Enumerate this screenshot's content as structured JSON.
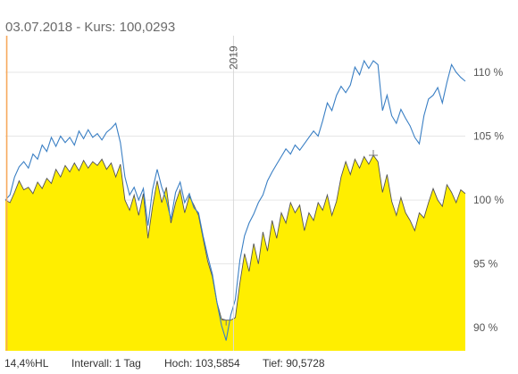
{
  "header": {
    "date": "03.07.2018",
    "separator": "-",
    "kurs_label": "Kurs:",
    "kurs_value": "100,0293"
  },
  "footer": {
    "range": "14,4%HL",
    "interval": "Intervall: 1 Tag",
    "high": "Hoch: 103,5854",
    "low": "Tief: 90,5728"
  },
  "colors": {
    "area_fill": "#ffee00",
    "area_line": "#555555",
    "benchmark_line": "#3a7fc4",
    "cursor": "#f7a95c",
    "grid": "#e6e6e6"
  },
  "chart_data": {
    "type": "area",
    "year_marker": "2019",
    "y_ticks": [
      {
        "value": 90,
        "label": "90 %"
      },
      {
        "value": 95,
        "label": "95 %"
      },
      {
        "value": 100,
        "label": "100 %"
      },
      {
        "value": 105,
        "label": "105 %"
      },
      {
        "value": 110,
        "label": "110 %"
      }
    ],
    "ylim": [
      88.2,
      113
    ],
    "x_range": [
      0,
      100
    ],
    "year_marker_x": 49.6,
    "cursor_x": 0.3,
    "series": [
      {
        "style": "filled-area",
        "points": [
          [
            0,
            100.0
          ],
          [
            1,
            99.8
          ],
          [
            2,
            100.6
          ],
          [
            3,
            101.5
          ],
          [
            4,
            100.8
          ],
          [
            5,
            101.0
          ],
          [
            6,
            100.5
          ],
          [
            7,
            101.4
          ],
          [
            8,
            100.9
          ],
          [
            9,
            101.7
          ],
          [
            10,
            101.3
          ],
          [
            11,
            102.4
          ],
          [
            12,
            101.8
          ],
          [
            13,
            102.7
          ],
          [
            14,
            102.2
          ],
          [
            15,
            102.9
          ],
          [
            16,
            102.3
          ],
          [
            17,
            103.1
          ],
          [
            18,
            102.5
          ],
          [
            19,
            103.0
          ],
          [
            20,
            102.7
          ],
          [
            21,
            103.2
          ],
          [
            22,
            102.4
          ],
          [
            23,
            102.9
          ],
          [
            24,
            101.8
          ],
          [
            25,
            102.8
          ],
          [
            26,
            100.0
          ],
          [
            27,
            99.2
          ],
          [
            28,
            100.4
          ],
          [
            29,
            98.8
          ],
          [
            30,
            100.5
          ],
          [
            31,
            97.0
          ],
          [
            32,
            99.5
          ],
          [
            33,
            101.5
          ],
          [
            34,
            99.8
          ],
          [
            35,
            101.0
          ],
          [
            36,
            98.2
          ],
          [
            37,
            99.8
          ],
          [
            38,
            100.8
          ],
          [
            39,
            99.0
          ],
          [
            40,
            100.3
          ],
          [
            41,
            99.6
          ],
          [
            42,
            98.8
          ],
          [
            43,
            97.0
          ],
          [
            44,
            95.2
          ],
          [
            45,
            94.0
          ],
          [
            46,
            92.0
          ],
          [
            47,
            90.7
          ],
          [
            48,
            90.6
          ],
          [
            49,
            90.6
          ],
          [
            50,
            90.8
          ],
          [
            51,
            93.5
          ],
          [
            52,
            95.8
          ],
          [
            53,
            94.4
          ],
          [
            54,
            96.6
          ],
          [
            55,
            95.0
          ],
          [
            56,
            97.5
          ],
          [
            57,
            96.0
          ],
          [
            58,
            98.4
          ],
          [
            59,
            97.0
          ],
          [
            60,
            99.0
          ],
          [
            61,
            98.2
          ],
          [
            62,
            99.8
          ],
          [
            63,
            99.0
          ],
          [
            64,
            99.6
          ],
          [
            65,
            97.6
          ],
          [
            66,
            99.0
          ],
          [
            67,
            98.4
          ],
          [
            68,
            99.8
          ],
          [
            69,
            99.2
          ],
          [
            70,
            100.4
          ],
          [
            71,
            98.8
          ],
          [
            72,
            99.9
          ],
          [
            73,
            101.8
          ],
          [
            74,
            103.0
          ],
          [
            75,
            102.0
          ],
          [
            76,
            103.2
          ],
          [
            77,
            102.5
          ],
          [
            78,
            103.4
          ],
          [
            79,
            102.8
          ],
          [
            80,
            103.5
          ],
          [
            81,
            103.0
          ],
          [
            82,
            100.6
          ],
          [
            83,
            102.0
          ],
          [
            84,
            99.9
          ],
          [
            85,
            98.8
          ],
          [
            86,
            100.2
          ],
          [
            87,
            99.0
          ],
          [
            88,
            98.4
          ],
          [
            89,
            97.6
          ],
          [
            90,
            99.0
          ],
          [
            91,
            98.6
          ],
          [
            92,
            99.8
          ],
          [
            93,
            100.9
          ],
          [
            94,
            100.0
          ],
          [
            95,
            99.5
          ],
          [
            96,
            101.2
          ],
          [
            97,
            100.6
          ],
          [
            98,
            99.8
          ],
          [
            99,
            100.8
          ],
          [
            100,
            100.5
          ]
        ]
      },
      {
        "style": "line",
        "points": [
          [
            0,
            100.0
          ],
          [
            1,
            100.4
          ],
          [
            2,
            101.8
          ],
          [
            3,
            102.6
          ],
          [
            4,
            103.0
          ],
          [
            5,
            102.5
          ],
          [
            6,
            103.6
          ],
          [
            7,
            103.2
          ],
          [
            8,
            104.3
          ],
          [
            9,
            103.8
          ],
          [
            10,
            104.9
          ],
          [
            11,
            104.2
          ],
          [
            12,
            105.0
          ],
          [
            13,
            104.5
          ],
          [
            14,
            104.9
          ],
          [
            15,
            104.3
          ],
          [
            16,
            105.4
          ],
          [
            17,
            104.8
          ],
          [
            18,
            105.5
          ],
          [
            19,
            104.9
          ],
          [
            20,
            105.2
          ],
          [
            21,
            104.7
          ],
          [
            22,
            105.3
          ],
          [
            23,
            105.6
          ],
          [
            24,
            106.0
          ],
          [
            25,
            104.5
          ],
          [
            26,
            101.8
          ],
          [
            27,
            100.4
          ],
          [
            28,
            101.0
          ],
          [
            29,
            100.0
          ],
          [
            30,
            100.9
          ],
          [
            31,
            98.0
          ],
          [
            32,
            100.8
          ],
          [
            33,
            102.4
          ],
          [
            34,
            101.0
          ],
          [
            35,
            100.0
          ],
          [
            36,
            98.5
          ],
          [
            37,
            100.6
          ],
          [
            38,
            101.4
          ],
          [
            39,
            99.8
          ],
          [
            40,
            100.5
          ],
          [
            41,
            99.4
          ],
          [
            42,
            99.0
          ],
          [
            43,
            97.2
          ],
          [
            44,
            95.6
          ],
          [
            45,
            94.2
          ],
          [
            46,
            92.0
          ],
          [
            47,
            90.2
          ],
          [
            48,
            89.0
          ],
          [
            49,
            91.0
          ],
          [
            50,
            92.2
          ],
          [
            51,
            95.3
          ],
          [
            52,
            97.2
          ],
          [
            53,
            98.2
          ],
          [
            54,
            98.9
          ],
          [
            55,
            99.8
          ],
          [
            56,
            100.4
          ],
          [
            57,
            101.5
          ],
          [
            58,
            102.2
          ],
          [
            59,
            102.8
          ],
          [
            60,
            103.4
          ],
          [
            61,
            104.0
          ],
          [
            62,
            103.6
          ],
          [
            63,
            104.3
          ],
          [
            64,
            103.9
          ],
          [
            65,
            104.4
          ],
          [
            66,
            104.9
          ],
          [
            67,
            105.4
          ],
          [
            68,
            105.0
          ],
          [
            69,
            106.2
          ],
          [
            70,
            107.6
          ],
          [
            71,
            107.0
          ],
          [
            72,
            108.2
          ],
          [
            73,
            108.9
          ],
          [
            74,
            108.4
          ],
          [
            75,
            109.0
          ],
          [
            76,
            110.4
          ],
          [
            77,
            109.8
          ],
          [
            78,
            110.9
          ],
          [
            79,
            110.3
          ],
          [
            80,
            110.9
          ],
          [
            81,
            110.6
          ],
          [
            82,
            107.0
          ],
          [
            83,
            108.2
          ],
          [
            84,
            106.6
          ],
          [
            85,
            106.0
          ],
          [
            86,
            107.1
          ],
          [
            87,
            106.4
          ],
          [
            88,
            105.8
          ],
          [
            89,
            104.9
          ],
          [
            90,
            104.4
          ],
          [
            91,
            106.6
          ],
          [
            92,
            107.9
          ],
          [
            93,
            108.2
          ],
          [
            94,
            108.8
          ],
          [
            95,
            107.6
          ],
          [
            96,
            109.2
          ],
          [
            97,
            110.6
          ],
          [
            98,
            110.0
          ],
          [
            99,
            109.6
          ],
          [
            100,
            109.3
          ]
        ]
      }
    ]
  }
}
